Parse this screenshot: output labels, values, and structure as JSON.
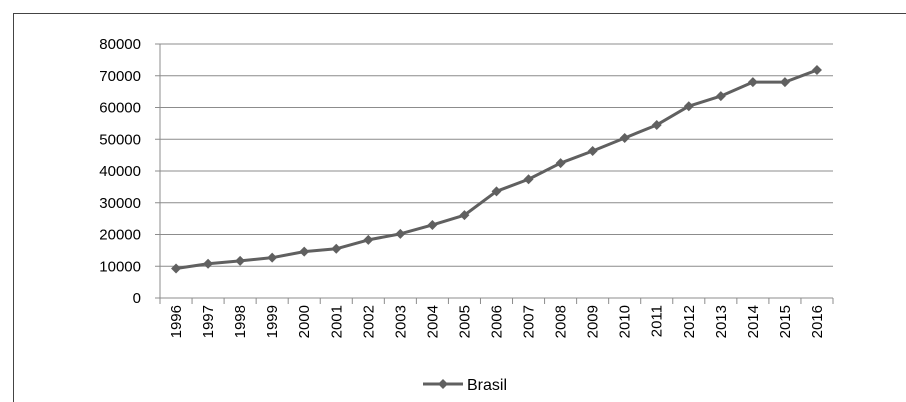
{
  "chart_data": {
    "type": "line",
    "title": "",
    "xlabel": "",
    "ylabel": "",
    "categories": [
      "1996",
      "1997",
      "1998",
      "1999",
      "2000",
      "2001",
      "2002",
      "2003",
      "2004",
      "2005",
      "2006",
      "2007",
      "2008",
      "2009",
      "2010",
      "2011",
      "2012",
      "2013",
      "2014",
      "2015",
      "2016"
    ],
    "series": [
      {
        "name": "Brasil",
        "values": [
          9300,
          10800,
          11700,
          12700,
          14600,
          15500,
          18300,
          20200,
          23000,
          26100,
          33600,
          37400,
          42500,
          46300,
          50400,
          54500,
          60400,
          63600,
          68000,
          68000,
          71800
        ],
        "color": "#606060"
      }
    ],
    "ylim": [
      0,
      80000
    ],
    "yticks": [
      "0",
      "10000",
      "20000",
      "30000",
      "40000",
      "50000",
      "60000",
      "70000",
      "80000"
    ],
    "grid": true,
    "legend": "bottom"
  }
}
